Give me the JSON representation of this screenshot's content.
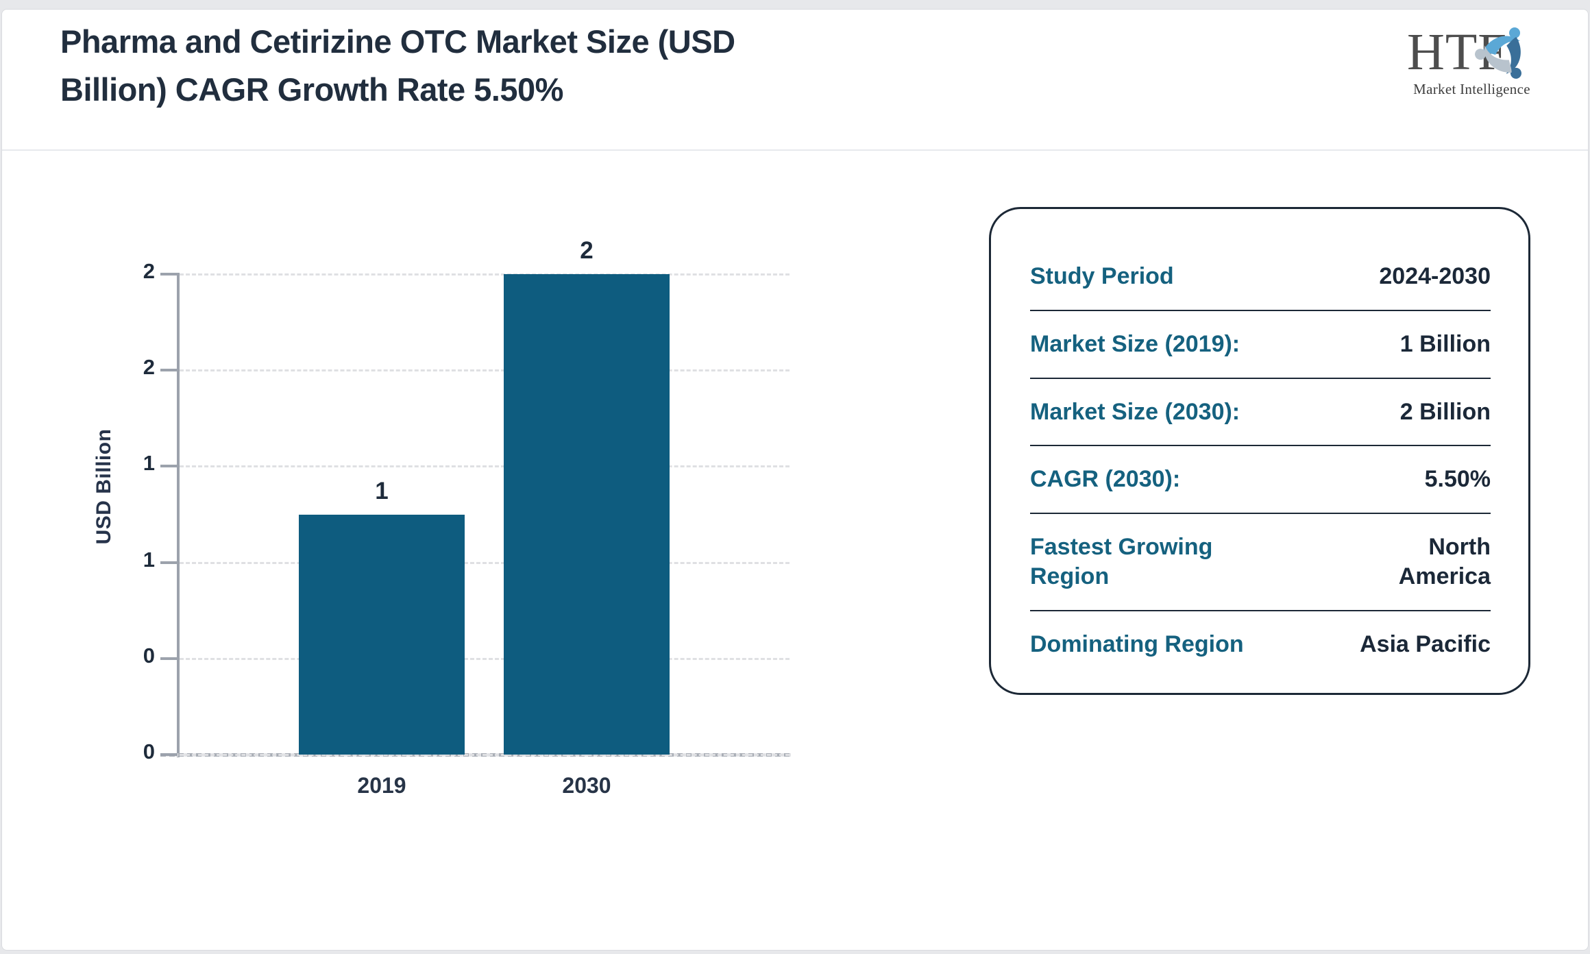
{
  "header": {
    "title_line1": "Pharma and Cetirizine OTC Market Size (USD",
    "title_line2": "Billion) CAGR Growth Rate 5.50%",
    "logo": {
      "text": "HTF",
      "subtext": "Market Intelligence"
    }
  },
  "chart_data": {
    "type": "bar",
    "title": "Pharma and Cetirizine OTC Market Size (USD Billion) CAGR Growth Rate 5.50%",
    "categories": [
      "2019",
      "2030"
    ],
    "values": [
      1,
      2
    ],
    "bar_value_labels": [
      "1",
      "2"
    ],
    "xlabel": "",
    "ylabel": "USD Billion",
    "ylim": [
      0,
      2
    ],
    "yticks": [
      {
        "value": 2.0,
        "label": "2"
      },
      {
        "value": 1.6,
        "label": "2"
      },
      {
        "value": 1.2,
        "label": "1"
      },
      {
        "value": 0.8,
        "label": "1"
      },
      {
        "value": 0.4,
        "label": "0"
      },
      {
        "value": 0.0,
        "label": "0"
      }
    ],
    "grid": "horizontal-dashed",
    "legend_position": "none",
    "bar_color": "#0e5c7f"
  },
  "info_panel": {
    "rows": [
      {
        "label": "Study Period",
        "value": "2024-2030"
      },
      {
        "label": "Market Size (2019):",
        "value": "1 Billion"
      },
      {
        "label": "Market Size (2030):",
        "value": "2 Billion"
      },
      {
        "label": "CAGR (2030):",
        "value": "5.50%"
      },
      {
        "label": "Fastest Growing Region",
        "value": "North America"
      },
      {
        "label": "Dominating Region",
        "value": "Asia Pacific"
      }
    ]
  },
  "colors": {
    "bar": "#0e5c7f",
    "label_teal": "#15617f",
    "text_dark": "#1e2b3b",
    "axis": "#9ca2ac",
    "gridline": "#dfe0e3",
    "panel_border": "#1c2836",
    "page_background": "#e7e8eb",
    "logo_light_blue": "#5ba8d6",
    "logo_steel_blue": "#3a6f99",
    "logo_gray": "#b8c3cd"
  }
}
